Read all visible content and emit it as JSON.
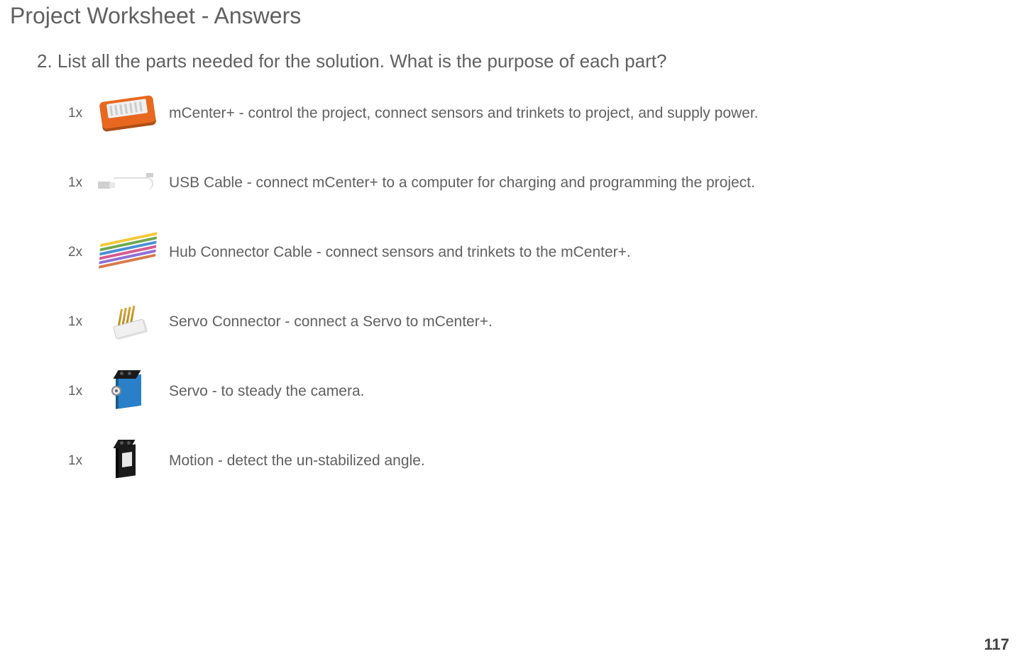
{
  "title": "Project Worksheet - Answers",
  "question": "2. List all the parts needed for the solution. What is the purpose of each part?",
  "parts": [
    {
      "qty": "1x",
      "desc": "mCenter+ - control the project, connect sensors and trinkets to project, and supply power."
    },
    {
      "qty": "1x",
      "desc": "USB Cable - connect mCenter+ to a computer for charging and programming the project."
    },
    {
      "qty": "2x",
      "desc": "Hub Connector Cable - connect sensors and trinkets to the mCenter+."
    },
    {
      "qty": "1x",
      "desc": "Servo Connector - connect a Servo to mCenter+."
    },
    {
      "qty": "1x",
      "desc": "Servo - to steady the camera."
    },
    {
      "qty": "1x",
      "desc": "Motion - detect the un-stabilized angle."
    }
  ],
  "ribbon_colors": [
    "#f4c838",
    "#6fa84f",
    "#4a8fd8",
    "#d85a8f",
    "#8f6fd8",
    "#d87a4a"
  ],
  "page_number": "117"
}
